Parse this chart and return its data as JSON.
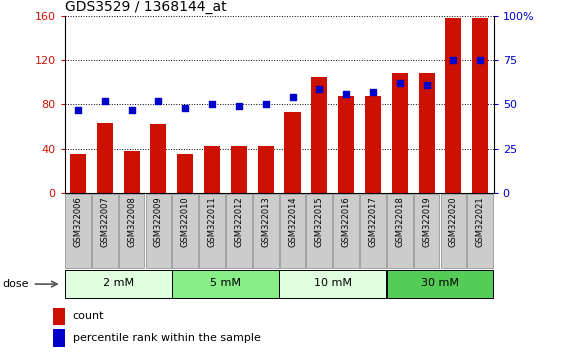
{
  "title": "GDS3529 / 1368144_at",
  "categories": [
    "GSM322006",
    "GSM322007",
    "GSM322008",
    "GSM322009",
    "GSM322010",
    "GSM322011",
    "GSM322012",
    "GSM322013",
    "GSM322014",
    "GSM322015",
    "GSM322016",
    "GSM322017",
    "GSM322018",
    "GSM322019",
    "GSM322020",
    "GSM322021"
  ],
  "counts": [
    35,
    63,
    38,
    62,
    35,
    42,
    42,
    42,
    73,
    105,
    88,
    88,
    108,
    108,
    158,
    158
  ],
  "percentiles": [
    47,
    52,
    47,
    52,
    48,
    50,
    49,
    50,
    54,
    59,
    56,
    57,
    62,
    61,
    75,
    75
  ],
  "dose_groups": [
    {
      "label": "2 mM",
      "start": 0,
      "end": 4,
      "color": "#dfffdf"
    },
    {
      "label": "5 mM",
      "start": 4,
      "end": 8,
      "color": "#88ee88"
    },
    {
      "label": "10 mM",
      "start": 8,
      "end": 12,
      "color": "#dfffdf"
    },
    {
      "label": "30 mM",
      "start": 12,
      "end": 16,
      "color": "#55cc55"
    }
  ],
  "bar_color": "#cc1100",
  "dot_color": "#0000cc",
  "ylim_left": [
    0,
    160
  ],
  "ylim_right": [
    0,
    100
  ],
  "yticks_left": [
    0,
    40,
    80,
    120,
    160
  ],
  "yticks_right": [
    0,
    25,
    50,
    75,
    100
  ],
  "tick_label_bg": "#cccccc",
  "title_fontsize": 10
}
